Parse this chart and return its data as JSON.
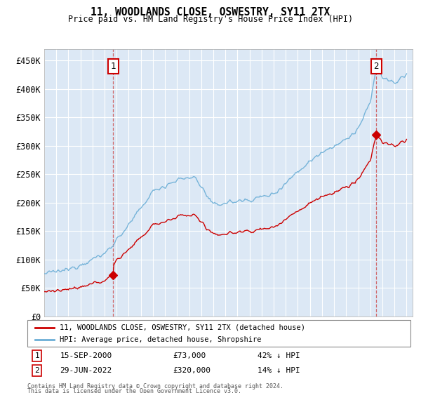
{
  "title": "11, WOODLANDS CLOSE, OSWESTRY, SY11 2TX",
  "subtitle": "Price paid vs. HM Land Registry's House Price Index (HPI)",
  "bg_color": "#dce8f5",
  "yticks": [
    0,
    50000,
    100000,
    150000,
    200000,
    250000,
    300000,
    350000,
    400000,
    450000
  ],
  "ytick_labels": [
    "£0",
    "£50K",
    "£100K",
    "£150K",
    "£200K",
    "£250K",
    "£300K",
    "£350K",
    "£400K",
    "£450K"
  ],
  "xmin": 1995.0,
  "xmax": 2025.5,
  "ymin": 0,
  "ymax": 470000,
  "transaction1_x": 2000.71,
  "transaction1_y": 73000,
  "transaction2_x": 2022.49,
  "transaction2_y": 320000,
  "legend_line1": "11, WOODLANDS CLOSE, OSWESTRY, SY11 2TX (detached house)",
  "legend_line2": "HPI: Average price, detached house, Shropshire",
  "footer1": "Contains HM Land Registry data © Crown copyright and database right 2024.",
  "footer2": "This data is licensed under the Open Government Licence v3.0.",
  "red_color": "#cc0000",
  "hpi_color": "#6baed6",
  "transaction1_date": "15-SEP-2000",
  "transaction1_price": "£73,000",
  "transaction1_hpi": "42% ↓ HPI",
  "transaction2_date": "29-JUN-2022",
  "transaction2_price": "£320,000",
  "transaction2_hpi": "14% ↓ HPI"
}
